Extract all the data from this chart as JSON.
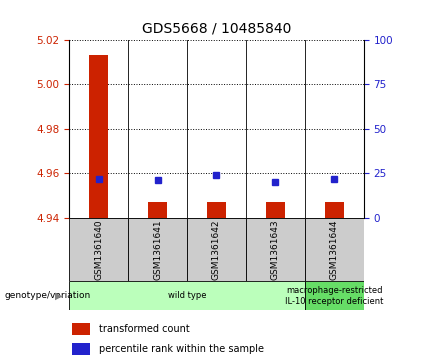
{
  "title": "GDS5668 / 10485840",
  "samples": [
    "GSM1361640",
    "GSM1361641",
    "GSM1361642",
    "GSM1361643",
    "GSM1361644"
  ],
  "transformed_counts": [
    5.013,
    4.947,
    4.947,
    4.947,
    4.947
  ],
  "percentile_ranks": [
    22,
    21,
    24,
    20,
    22
  ],
  "left_ylim": [
    4.94,
    5.02
  ],
  "right_ylim": [
    0,
    100
  ],
  "left_yticks": [
    4.94,
    4.96,
    4.98,
    5.0,
    5.02
  ],
  "right_yticks": [
    0,
    25,
    50,
    75,
    100
  ],
  "bar_color": "#cc2200",
  "dot_color": "#2222cc",
  "title_fontsize": 10,
  "genotype_label": "genotype/variation",
  "groups": [
    {
      "label": "wild type",
      "samples": [
        0,
        1,
        2,
        3
      ],
      "color": "#bbffbb"
    },
    {
      "label": "macrophage-restricted\nIL-10 receptor deficient",
      "samples": [
        4
      ],
      "color": "#66dd66"
    }
  ],
  "legend_items": [
    {
      "label": "transformed count",
      "color": "#cc2200"
    },
    {
      "label": "percentile rank within the sample",
      "color": "#2222cc"
    }
  ],
  "left_tick_color": "#cc2200",
  "right_tick_color": "#2222cc",
  "bar_baseline": 4.94,
  "sample_area_color": "#cccccc"
}
